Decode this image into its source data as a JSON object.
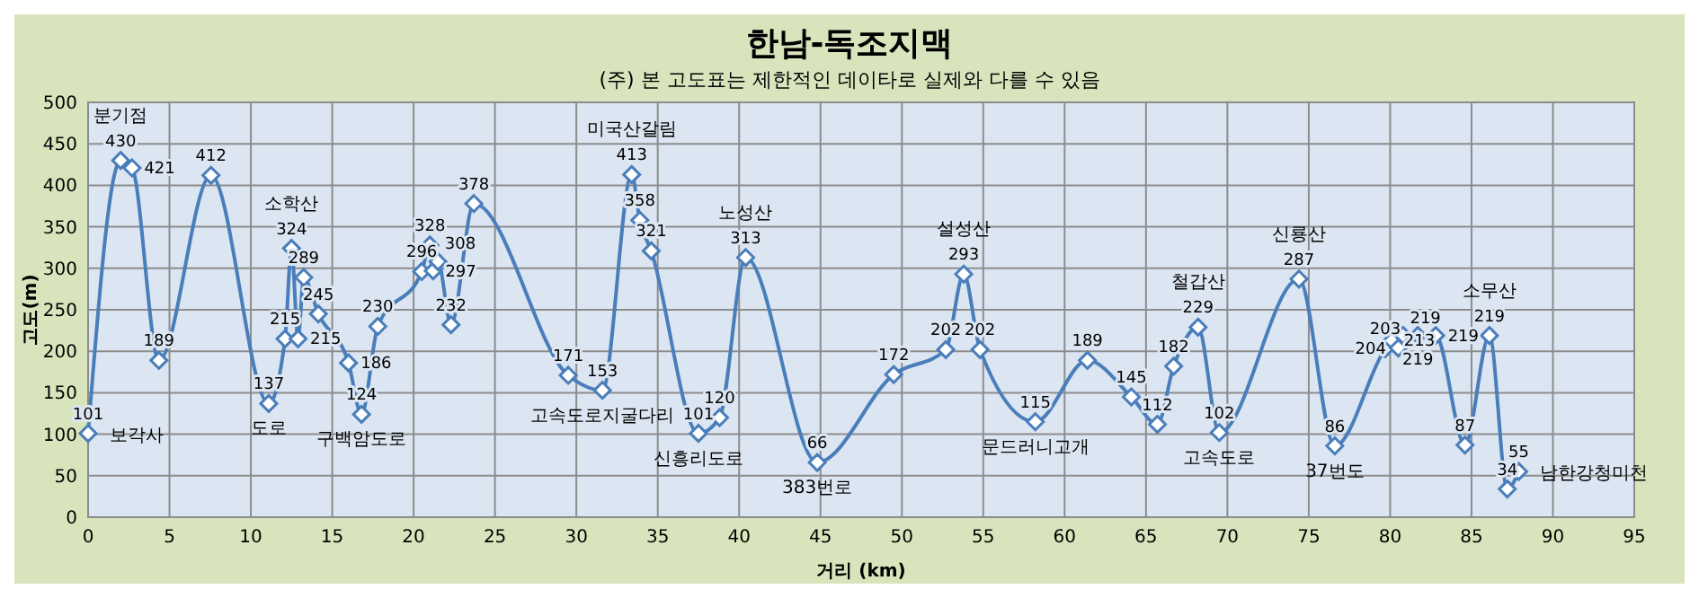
{
  "chart_data": {
    "type": "line",
    "title": "한남-독조지맥",
    "subtitle": "(주) 본 고도표는 제한적인 데이타로 실제와 다를 수 있음",
    "xlabel": "거리 (km)",
    "ylabel": "고도(m)",
    "x": [
      0,
      2.0,
      2.7,
      4.35,
      7.55,
      11.1,
      12.1,
      12.5,
      12.9,
      13.25,
      14.15,
      16.0,
      16.8,
      17.8,
      20.5,
      21.0,
      21.2,
      21.5,
      22.3,
      23.7,
      29.5,
      31.6,
      33.4,
      33.9,
      34.6,
      37.5,
      38.8,
      40.4,
      44.8,
      49.5,
      52.7,
      53.8,
      54.8,
      58.2,
      61.4,
      64.1,
      65.7,
      66.7,
      68.2,
      69.5,
      74.4,
      76.6,
      79.7,
      80.1,
      80.5,
      80.8,
      81.7,
      82.8,
      84.6,
      86.1,
      87.2,
      87.9
    ],
    "series": [
      {
        "color": "#4a7ebb",
        "values": [
          101,
          430,
          421,
          189,
          412,
          137,
          215,
          324,
          215,
          289,
          245,
          186,
          124,
          230,
          296,
          328,
          297,
          308,
          232,
          378,
          171,
          153,
          413,
          358,
          321,
          101,
          120,
          313,
          66,
          172,
          202,
          293,
          202,
          115,
          189,
          145,
          112,
          182,
          229,
          102,
          287,
          86,
          203,
          213,
          204,
          219,
          219,
          219,
          87,
          219,
          34,
          55
        ]
      }
    ],
    "xlim": [
      0,
      95
    ],
    "xticks": [
      0,
      5,
      10,
      15,
      20,
      25,
      30,
      35,
      40,
      45,
      50,
      55,
      60,
      65,
      70,
      75,
      80,
      85,
      90,
      95
    ],
    "ylim": [
      0,
      500
    ],
    "yticks": [
      0,
      50,
      100,
      150,
      200,
      250,
      300,
      350,
      400,
      450,
      500
    ],
    "grid": true,
    "marker": "diamond",
    "data_labels": true,
    "annotations": [
      {
        "text": "보각사",
        "x": 0,
        "y": 101
      },
      {
        "text": "분기점",
        "x": 2.0,
        "y": 430
      },
      {
        "text": "도로",
        "x": 11.1,
        "y": 137
      },
      {
        "text": "소학산",
        "x": 12.5,
        "y": 324
      },
      {
        "text": "구백암도로",
        "x": 16.8,
        "y": 124
      },
      {
        "text": "고속도로지굴다리",
        "x": 31.6,
        "y": 153
      },
      {
        "text": "미국산갈림",
        "x": 33.4,
        "y": 413
      },
      {
        "text": "신흥리도로",
        "x": 37.5,
        "y": 101
      },
      {
        "text": "노성산",
        "x": 40.4,
        "y": 313
      },
      {
        "text": "383번로",
        "x": 44.8,
        "y": 66
      },
      {
        "text": "설성산",
        "x": 53.8,
        "y": 293
      },
      {
        "text": "문드러니고개",
        "x": 58.2,
        "y": 115
      },
      {
        "text": "철갑산",
        "x": 68.2,
        "y": 229
      },
      {
        "text": "고속도로",
        "x": 69.5,
        "y": 102
      },
      {
        "text": "신룡산",
        "x": 74.4,
        "y": 287
      },
      {
        "text": "37번도",
        "x": 76.6,
        "y": 86
      },
      {
        "text": "소무산",
        "x": 86.1,
        "y": 219
      },
      {
        "text": "남한강청미천",
        "x": 87.9,
        "y": 55
      }
    ]
  }
}
